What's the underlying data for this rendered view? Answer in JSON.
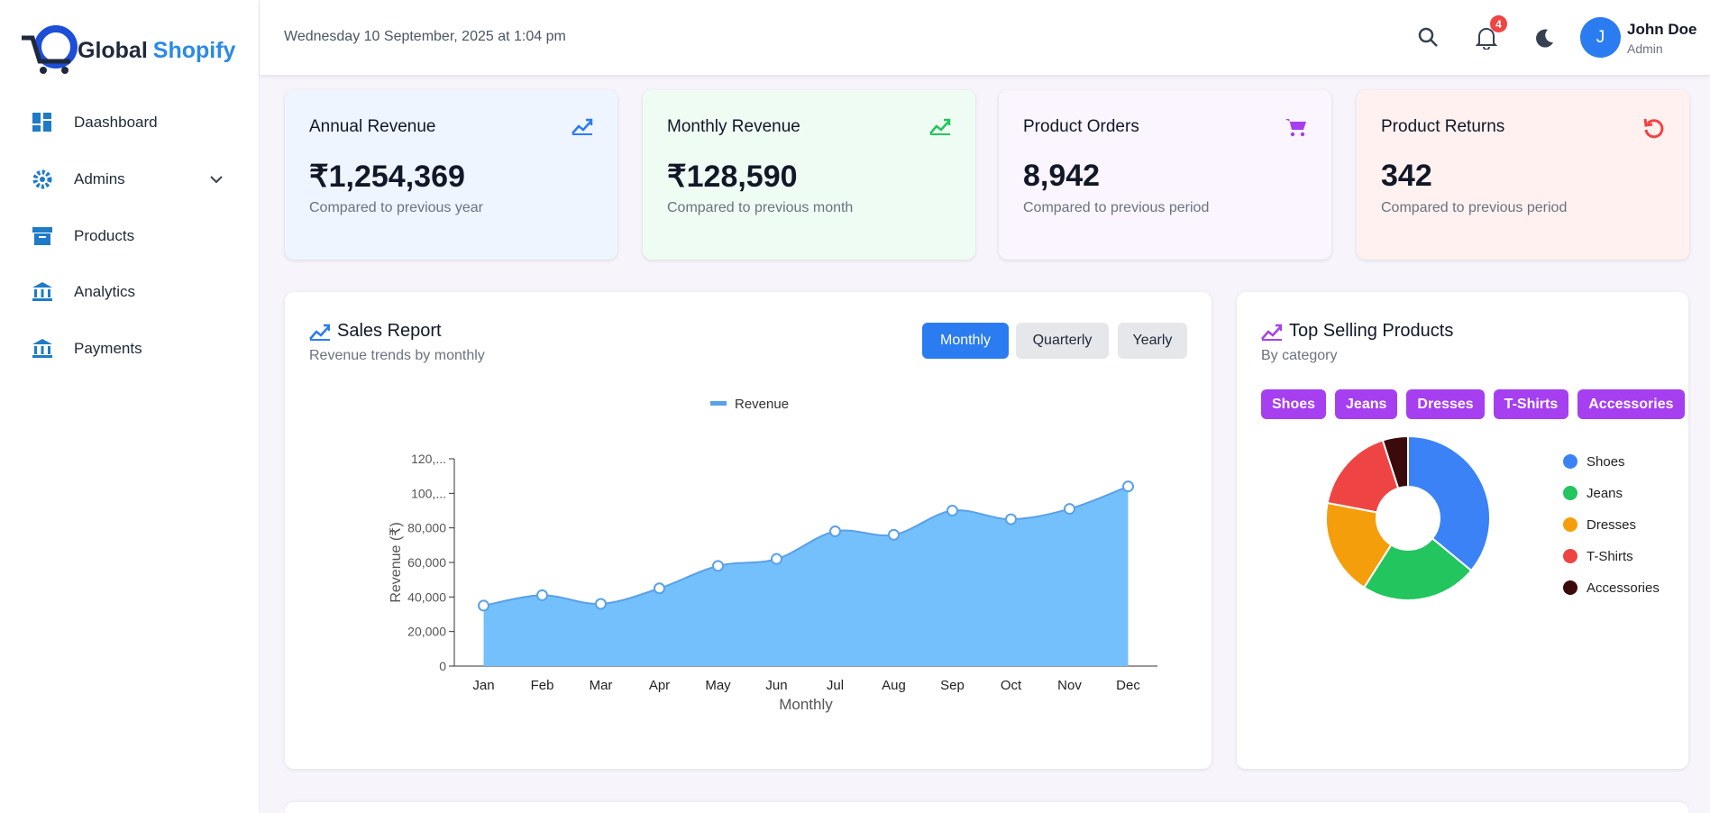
{
  "header": {
    "date": "Wednesday 10 September, 2025 at 1:04 pm",
    "notifications": "4",
    "avatar": "J",
    "user_name": "John Doe",
    "user_role": "Admin"
  },
  "logo": {
    "first": "Global",
    "second": "Shopify"
  },
  "sidebar": {
    "items": [
      "Daashboard",
      "Admins",
      "Products",
      "Analytics",
      "Payments"
    ]
  },
  "cards": [
    {
      "title": "Annual Revenue",
      "value": "₹1,254,369",
      "note": "Compared to previous year"
    },
    {
      "title": "Monthly Revenue",
      "value": "₹128,590",
      "note": "Compared to previous month"
    },
    {
      "title": "Product Orders",
      "value": "8,942",
      "note": "Compared to previous period"
    },
    {
      "title": "Product Returns",
      "value": "342",
      "note": "Compared to previous period"
    }
  ],
  "sales_report": {
    "title": "Sales Report",
    "subtitle": "Revenue trends by monthly",
    "buttons": [
      "Monthly",
      "Quarterly",
      "Yearly"
    ]
  },
  "top_selling": {
    "title": "Top Selling Products",
    "subtitle": "By category"
  },
  "chart_data": [
    {
      "type": "area",
      "series": [
        {
          "name": "Revenue",
          "color": "#74c0fc",
          "values": [
            35000,
            41000,
            36000,
            45000,
            58000,
            62000,
            78000,
            76000,
            90000,
            85000,
            91000,
            104000
          ]
        }
      ],
      "categories": [
        "Jan",
        "Feb",
        "Mar",
        "Apr",
        "May",
        "Jun",
        "Jul",
        "Aug",
        "Sep",
        "Oct",
        "Nov",
        "Dec"
      ],
      "x_label": "Monthly",
      "y_label": "Revenue (₹)",
      "ylim": [
        0,
        120000
      ],
      "yticks": [
        0,
        {
          "value": 20000,
          "label": "20,000"
        },
        {
          "value": 40000,
          "label": "40,000"
        },
        {
          "value": 60000,
          "label": "60,000"
        },
        {
          "value": 80000,
          "label": "80,000"
        },
        {
          "value": 100000,
          "label": "100,..."
        },
        {
          "value": 120000,
          "label": "120,..."
        }
      ],
      "grid": false,
      "legend": "top"
    },
    {
      "type": "doughnut",
      "categories": [
        "Shoes",
        "Jeans",
        "Dresses",
        "T-Shirts",
        "Accessories"
      ],
      "values": [
        36,
        23,
        19,
        17,
        5
      ],
      "colors": [
        "#3b82f6",
        "#22c55e",
        "#f59e0b",
        "#ef4444",
        "#3b0a0a"
      ],
      "legend": "right"
    }
  ]
}
